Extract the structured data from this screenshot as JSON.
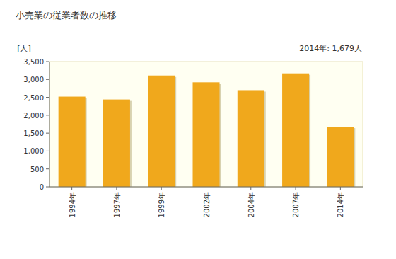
{
  "chart_data": {
    "type": "bar",
    "title": "小売業の従業者数の推移",
    "y_label": "[人]",
    "annotation": "2014年: 1,679人",
    "categories": [
      "1994年",
      "1997年",
      "1999年",
      "2002年",
      "2004年",
      "2007年",
      "2014年"
    ],
    "values": [
      2520,
      2440,
      3110,
      2920,
      2700,
      3170,
      1679
    ],
    "color": "#f0a81c",
    "ylim": [
      0,
      3500
    ],
    "yticks": [
      0,
      500,
      {
        "value": 1000,
        "label": "1,000"
      },
      {
        "value": 1500,
        "label": "1,500"
      },
      {
        "value": 2000,
        "label": "2,000"
      },
      {
        "value": 2500,
        "label": "2,500"
      },
      {
        "value": 3000,
        "label": "3,000"
      },
      {
        "value": 3500,
        "label": "3,500"
      }
    ],
    "grid": false
  }
}
